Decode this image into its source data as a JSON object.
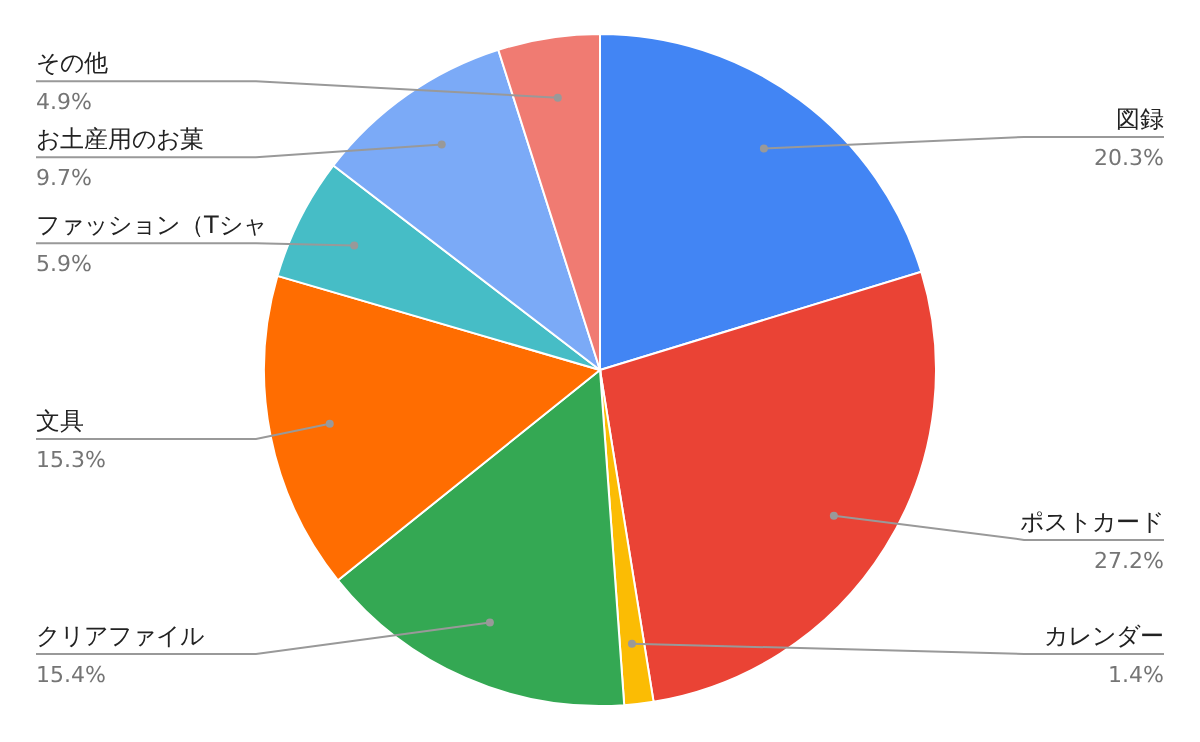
{
  "chart_data": {
    "type": "pie",
    "categories": [
      "図録",
      "ポストカード",
      "カレンダー",
      "クリアファイル",
      "文具",
      "ファッション（Tシャ",
      "お土産用のお菓",
      "その他"
    ],
    "values": [
      20.3,
      27.2,
      1.4,
      15.4,
      15.3,
      5.9,
      9.7,
      4.9
    ],
    "value_labels": [
      "20.3%",
      "27.2%",
      "1.4%",
      "15.4%",
      "15.3%",
      "5.9%",
      "9.7%",
      "4.9%"
    ],
    "colors": [
      "#4285f4",
      "#ea4335",
      "#fbbc04",
      "#34a853",
      "#ff6d01",
      "#46bdc6",
      "#7baaf7",
      "#f07b72"
    ]
  }
}
